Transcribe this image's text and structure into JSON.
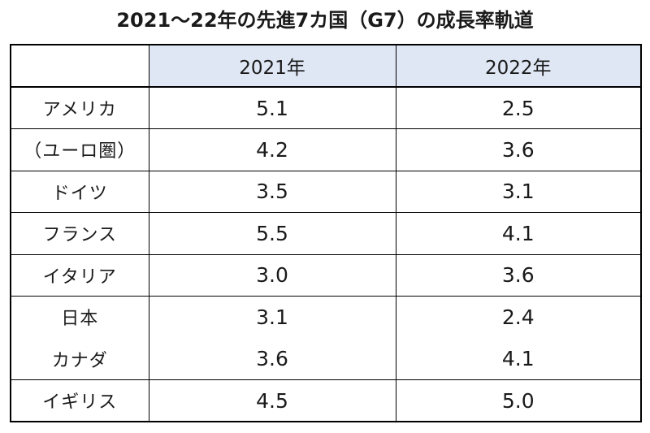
{
  "title": "2021～22年の先進7カ国（G7）の成長率軌道",
  "chart_data": {
    "type": "table",
    "title": "2021～22年の先進7カ国（G7）の成長率軌道",
    "columns": [
      "",
      "2021年",
      "2022年"
    ],
    "rows": [
      {
        "country": "アメリカ",
        "y2021": "5.1",
        "y2022": "2.5"
      },
      {
        "country": "（ユーロ圏）",
        "y2021": "4.2",
        "y2022": "3.6"
      },
      {
        "country": "ドイツ",
        "y2021": "3.5",
        "y2022": "3.1"
      },
      {
        "country": "フランス",
        "y2021": "5.5",
        "y2022": "4.1"
      },
      {
        "country": "イタリア",
        "y2021": "3.0",
        "y2022": "3.6"
      },
      {
        "country": "日本",
        "y2021": "3.1",
        "y2022": "2.4"
      },
      {
        "country": "カナダ",
        "y2021": "3.6",
        "y2022": "4.1"
      },
      {
        "country": "イギリス",
        "y2021": "4.5",
        "y2022": "5.0"
      }
    ]
  },
  "colors": {
    "header_fill": "#dfe7f4",
    "border": "#000000",
    "text": "#1a1a1a"
  }
}
